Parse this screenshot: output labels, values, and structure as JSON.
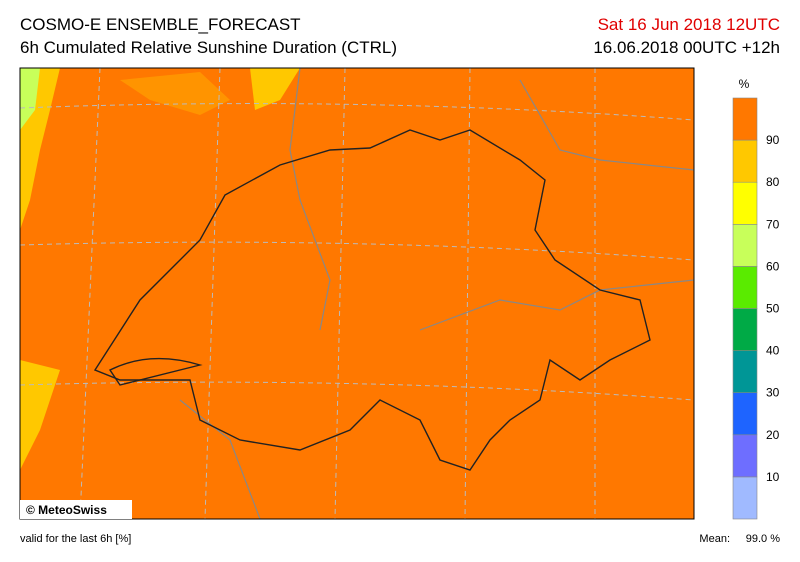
{
  "header": {
    "title": "COSMO-E ENSEMBLE_FORECAST",
    "subtitle": "6h Cumulated Relative Sunshine Duration (CTRL)",
    "valid_time": "Sat 16 Jun 2018 12UTC",
    "run": "16.06.2018 00UTC +12h"
  },
  "legend": {
    "unit": "%",
    "levels": [
      10,
      20,
      30,
      40,
      50,
      60,
      70,
      80,
      90
    ],
    "colors": [
      "#a0baff",
      "#6e6eff",
      "#1e64ff",
      "#009696",
      "#00aa46",
      "#5aeb00",
      "#c8ff5a",
      "#ffff00",
      "#ffc800",
      "#ff7800"
    ]
  },
  "map": {
    "fill": "#ff7800",
    "credit": "© MeteoSwiss"
  },
  "footer": {
    "note": "valid for the last 6h [%]",
    "mean_label": "Mean:",
    "mean_value": "99.0 %"
  }
}
